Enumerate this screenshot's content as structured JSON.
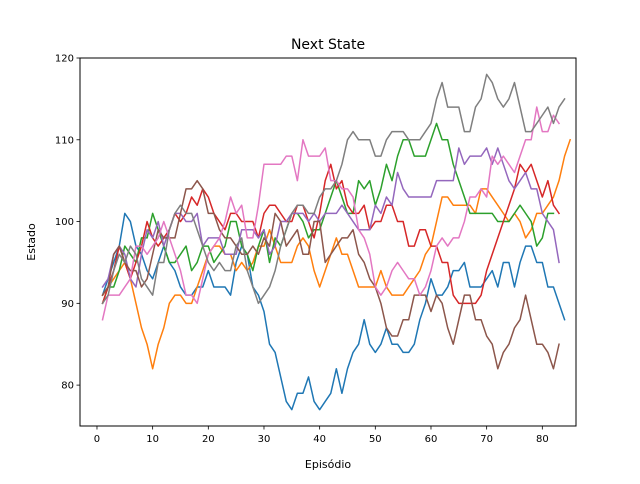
{
  "chart_data": {
    "type": "line",
    "title": "Next State",
    "xlabel": "Episódio",
    "ylabel": "Estado",
    "xlim": [
      -3.05,
      86.05
    ],
    "ylim": [
      75,
      120
    ],
    "xticks": [
      0,
      10,
      20,
      30,
      40,
      50,
      60,
      70,
      80
    ],
    "yticks": [
      80,
      90,
      100,
      110,
      120
    ],
    "grid": false,
    "legend": "none",
    "x_start": 1,
    "series": [
      {
        "color": "#1f77b4",
        "values": [
          91,
          93,
          95,
          97,
          101,
          100,
          97,
          96,
          94,
          93,
          95,
          97,
          95,
          94,
          92,
          91,
          91,
          92,
          92,
          94,
          92,
          92,
          92,
          91,
          95,
          97,
          96,
          92,
          91,
          89,
          85,
          84,
          81,
          78,
          77,
          79,
          79,
          81,
          78,
          77,
          78,
          79,
          82,
          79,
          82,
          84,
          85,
          88,
          85,
          84,
          85,
          87,
          85,
          85,
          84,
          84,
          85,
          88,
          90,
          93,
          91,
          91,
          92,
          94,
          94,
          95,
          92,
          92,
          92,
          93,
          94,
          92,
          95,
          95,
          92,
          95,
          97,
          97,
          95,
          95,
          92,
          92,
          90,
          88
        ]
      },
      {
        "color": "#ff7f0e",
        "values": [
          91,
          92,
          93,
          94,
          95,
          93,
          90,
          87,
          85,
          82,
          85,
          87,
          90,
          91,
          91,
          90,
          90,
          92,
          94,
          96,
          97,
          97,
          96,
          96,
          94,
          95,
          94,
          95,
          97,
          97,
          99,
          97,
          95,
          95,
          95,
          97,
          98,
          97,
          94,
          92,
          94,
          96,
          98,
          96,
          96,
          94,
          92,
          92,
          92,
          92,
          94,
          92,
          91,
          91,
          91,
          92,
          93,
          94,
          96,
          97,
          100,
          103,
          103,
          102,
          102,
          102,
          102,
          101,
          104,
          104,
          103,
          102,
          101,
          100,
          101,
          100,
          98,
          99,
          101,
          101,
          102,
          103,
          105,
          108,
          110
        ]
      },
      {
        "color": "#2ca02c",
        "values": [
          90,
          92,
          92,
          94,
          97,
          96,
          95,
          98,
          98,
          101,
          99,
          97,
          95,
          95,
          96,
          97,
          94,
          95,
          97,
          97,
          95,
          96,
          97,
          100,
          100,
          97,
          96,
          94,
          97,
          99,
          95,
          98,
          97,
          99,
          101,
          101,
          100,
          98,
          99,
          99,
          101,
          103,
          105,
          103,
          101,
          101,
          105,
          104,
          105,
          102,
          104,
          107,
          105,
          108,
          110,
          110,
          108,
          108,
          108,
          110,
          112,
          110,
          110,
          107,
          105,
          103,
          101,
          101,
          101,
          101,
          101,
          100,
          100,
          100,
          101,
          102,
          101,
          100,
          97,
          98,
          101,
          101
        ]
      },
      {
        "color": "#d62728",
        "values": [
          90,
          92,
          94,
          97,
          95,
          93,
          95,
          97,
          100,
          98,
          97,
          98,
          99,
          101,
          100,
          101,
          103,
          102,
          104,
          103,
          101,
          100,
          99,
          101,
          101,
          100,
          100,
          100,
          98,
          101,
          102,
          102,
          101,
          100,
          100,
          102,
          102,
          100,
          98,
          101,
          105,
          107,
          104,
          105,
          102,
          101,
          101,
          102,
          99,
          100,
          100,
          102,
          102,
          100,
          100,
          97,
          97,
          99,
          99,
          97,
          97,
          95,
          95,
          91,
          90,
          90,
          90,
          90,
          91,
          94,
          96,
          98,
          100,
          102,
          104,
          107,
          106,
          107,
          105,
          103,
          105,
          102,
          101
        ]
      },
      {
        "color": "#9467bd",
        "values": [
          92,
          93,
          96,
          97,
          96,
          93,
          92,
          96,
          99,
          98,
          100,
          97,
          99,
          101,
          101,
          100,
          100,
          101,
          97,
          98,
          98,
          98,
          96,
          96,
          96,
          99,
          99,
          99,
          98,
          99,
          96,
          97,
          100,
          100,
          101,
          101,
          101,
          100,
          101,
          100,
          101,
          101,
          101,
          102,
          101,
          100,
          99,
          99,
          99,
          102,
          101,
          103,
          102,
          106,
          104,
          103,
          103,
          103,
          103,
          103,
          105,
          105,
          105,
          105,
          109,
          107,
          108,
          108,
          108,
          109,
          107,
          109,
          107,
          105,
          104,
          105,
          106,
          104,
          104,
          101,
          100,
          99,
          95
        ]
      },
      {
        "color": "#8c564b",
        "values": [
          91,
          92,
          96,
          97,
          95,
          94,
          94,
          92,
          93,
          96,
          99,
          98,
          98,
          98,
          101,
          104,
          104,
          105,
          104,
          101,
          101,
          99,
          98,
          98,
          97,
          96,
          96,
          97,
          96,
          98,
          97,
          101,
          100,
          97,
          98,
          99,
          96,
          96,
          100,
          100,
          95,
          96,
          97,
          98,
          98,
          99,
          96,
          95,
          93,
          92,
          90,
          87,
          86,
          86,
          88,
          88,
          91,
          91,
          91,
          89,
          91,
          90,
          87,
          85,
          88,
          91,
          91,
          88,
          88,
          86,
          85,
          82,
          84,
          85,
          87,
          88,
          91,
          88,
          85,
          85,
          84,
          82,
          85
        ]
      },
      {
        "color": "#e377c2",
        "values": [
          88,
          91,
          91,
          91,
          92,
          93,
          97,
          97,
          96,
          97,
          98,
          100,
          98,
          96,
          94,
          91,
          91,
          90,
          93,
          96,
          97,
          98,
          100,
          103,
          101,
          102,
          98,
          98,
          102,
          107,
          107,
          107,
          107,
          108,
          108,
          105,
          110,
          108,
          108,
          108,
          109,
          105,
          105,
          104,
          104,
          103,
          99,
          98,
          96,
          92,
          91,
          92,
          94,
          95,
          94,
          93,
          93,
          91,
          92,
          94,
          97,
          98,
          97,
          98,
          98,
          100,
          103,
          103,
          104,
          103,
          108,
          107,
          108,
          107,
          106,
          108,
          110,
          110,
          114,
          111,
          111,
          113,
          112
        ]
      },
      {
        "color": "#7f7f7f",
        "values": [
          90,
          91,
          94,
          96,
          95,
          97,
          96,
          93,
          92,
          91,
          95,
          95,
          99,
          101,
          102,
          101,
          101,
          99,
          97,
          95,
          94,
          95,
          94,
          94,
          97,
          98,
          94,
          92,
          90,
          91,
          92,
          94,
          97,
          99,
          101,
          102,
          102,
          101,
          101,
          103,
          104,
          104,
          105,
          107,
          110,
          111,
          110,
          110,
          110,
          108,
          108,
          110,
          111,
          111,
          111,
          110,
          110,
          110,
          111,
          112,
          115,
          117,
          114,
          114,
          114,
          111,
          111,
          114,
          115,
          118,
          117,
          115,
          114,
          115,
          117,
          114,
          111,
          111,
          112,
          113,
          114,
          112,
          114,
          115
        ]
      }
    ]
  }
}
